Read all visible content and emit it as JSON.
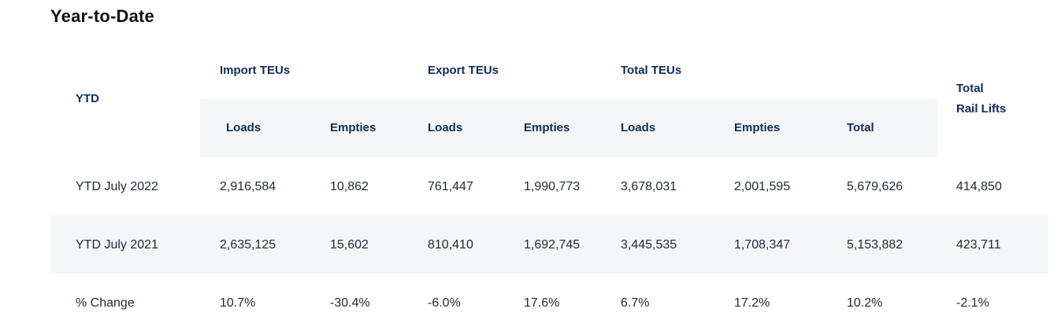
{
  "title": "Year-to-Date",
  "headers": {
    "ytd": "YTD",
    "import_group": "Import TEUs",
    "export_group": "Export TEUs",
    "total_group": "Total TEUs",
    "rail_line1": "Total",
    "rail_line2": "Rail Lifts",
    "import_loads": "Loads",
    "import_empties": "Empties",
    "export_loads": "Loads",
    "export_empties": "Empties",
    "total_loads": "Loads",
    "total_empties": "Empties",
    "total_total": "Total"
  },
  "rows": [
    {
      "label": "YTD July 2022",
      "import_loads": "2,916,584",
      "import_empties": "10,862",
      "export_loads": "761,447",
      "export_empties": "1,990,773",
      "total_loads": "3,678,031",
      "total_empties": "2,001,595",
      "total": "5,679,626",
      "rail_lifts": "414,850"
    },
    {
      "label": "YTD July 2021",
      "import_loads": "2,635,125",
      "import_empties": "15,602",
      "export_loads": "810,410",
      "export_empties": "1,692,745",
      "total_loads": "3,445,535",
      "total_empties": "1,708,347",
      "total": "5,153,882",
      "rail_lifts": "423,711"
    },
    {
      "label": "% Change",
      "import_loads": "10.7%",
      "import_empties": "-30.4%",
      "export_loads": "-6.0%",
      "export_empties": "17.6%",
      "total_loads": "6.7%",
      "total_empties": "17.2%",
      "total": "10.2%",
      "rail_lifts": "-2.1%"
    }
  ]
}
